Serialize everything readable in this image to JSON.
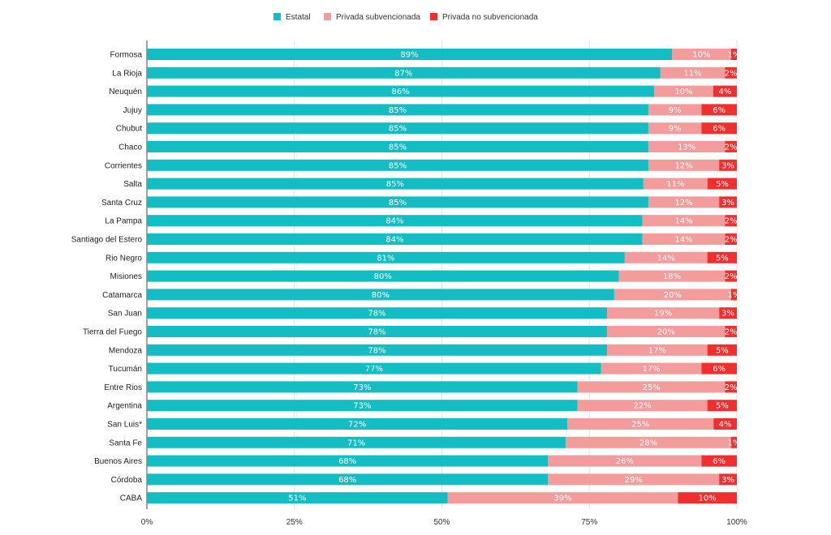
{
  "chart_data": {
    "type": "bar",
    "orientation": "horizontal",
    "stacked": true,
    "categories": [
      "Formosa",
      "La Rioja",
      "Neuquén",
      "Jujuy",
      "Chubut",
      "Chaco",
      "Corrientes",
      "Salta",
      "Santa Cruz",
      "La Pampa",
      "Santiago del Estero",
      "Rio Negro",
      "Misiones",
      "Catamarca",
      "San Juan",
      "Tierra del Fuego",
      "Mendoza",
      "Tucumán",
      "Entre Rios",
      "Argentina",
      "San Luis*",
      "Santa Fe",
      "Buenos Aires",
      "Córdoba",
      "CABA"
    ],
    "series": [
      {
        "name": "Estatal",
        "color": "#12bdc4",
        "values": [
          89,
          87,
          86,
          85,
          85,
          85,
          85,
          85,
          85,
          84,
          84,
          81,
          80,
          80,
          78,
          78,
          78,
          77,
          73,
          73,
          72,
          71,
          68,
          68,
          51
        ]
      },
      {
        "name": "Privada subvencionada",
        "color": "#f49b9b",
        "values": [
          10,
          11,
          10,
          9,
          9,
          13,
          12,
          11,
          12,
          14,
          14,
          14,
          18,
          20,
          19,
          20,
          17,
          17,
          25,
          22,
          25,
          28,
          26,
          29,
          39
        ]
      },
      {
        "name": "Privada no subvencionada",
        "color": "#f22f2f",
        "values": [
          1,
          2,
          4,
          6,
          6,
          2,
          3,
          5,
          3,
          2,
          2,
          5,
          2,
          1,
          3,
          2,
          5,
          6,
          2,
          5,
          4,
          1,
          6,
          3,
          10
        ]
      }
    ],
    "xlim": [
      0,
      100
    ],
    "x_ticks": [
      "0%",
      "25%",
      "50%",
      "75%",
      "100%"
    ],
    "value_suffix": "%",
    "grid": true,
    "legend_position": "top-center"
  }
}
